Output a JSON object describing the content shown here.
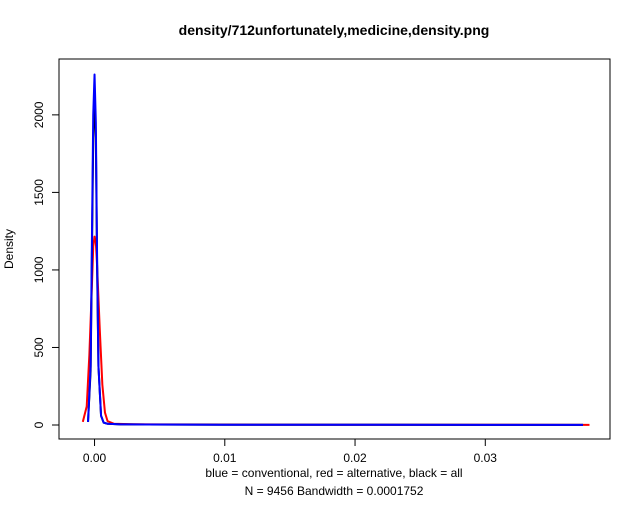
{
  "chart_data": {
    "type": "line",
    "title": "density/712unfortunately,medicine,density.png",
    "xlabel": "blue = conventional, red = alternative, black = all",
    "xlabel2": "N = 9456   Bandwidth = 0.0001752",
    "ylabel": "Density",
    "xlim": [
      -0.0015,
      0.0385
    ],
    "ylim": [
      0,
      2270
    ],
    "x_ticks": [
      0.0,
      0.01,
      0.02,
      0.03
    ],
    "x_tick_labels": [
      "0.00",
      "0.01",
      "0.02",
      "0.03"
    ],
    "y_ticks": [
      0,
      500,
      1000,
      1500,
      2000
    ],
    "y_tick_labels": [
      "0",
      "500",
      "1000",
      "1500",
      "2000"
    ],
    "grid": false,
    "legend": "none",
    "series": [
      {
        "color": "#ff0000",
        "x": [
          -0.0009,
          -0.0006,
          -0.0004,
          -0.0002,
          -0.0001,
          0.0,
          0.0001,
          0.0002,
          0.0004,
          0.0006,
          0.0008,
          0.001,
          0.0015,
          0.003,
          0.005,
          0.01,
          0.02,
          0.03,
          0.038
        ],
        "y": [
          20,
          120,
          450,
          900,
          1150,
          1215,
          1180,
          1020,
          620,
          260,
          80,
          25,
          8,
          5,
          4,
          3,
          2,
          2,
          1
        ]
      },
      {
        "color": "#000000",
        "x": [
          -0.0005,
          -0.0003,
          -0.0002,
          -0.0001,
          0.0,
          0.0001,
          0.0002,
          0.0003,
          0.0005,
          0.0007,
          0.001,
          0.002,
          0.004,
          0.01,
          0.02,
          0.03,
          0.0375
        ],
        "y": [
          20,
          350,
          1100,
          1850,
          2150,
          1850,
          1000,
          380,
          60,
          15,
          8,
          4,
          3,
          2,
          2,
          1,
          1
        ]
      },
      {
        "color": "#0000ff",
        "x": [
          -0.0005,
          -0.0003,
          -0.0002,
          -0.0001,
          0.0,
          0.0001,
          0.0002,
          0.0003,
          0.0005,
          0.0007,
          0.001,
          0.002,
          0.004,
          0.01,
          0.02,
          0.03,
          0.0375
        ],
        "y": [
          20,
          380,
          1200,
          2000,
          2260,
          1950,
          1050,
          380,
          60,
          15,
          8,
          4,
          3,
          2,
          2,
          1,
          1
        ]
      }
    ]
  }
}
